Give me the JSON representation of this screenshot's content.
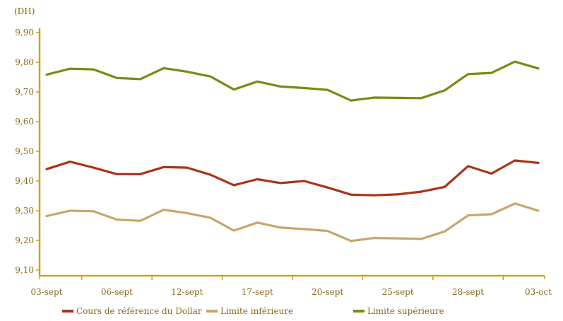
{
  "chart_data": {
    "type": "line",
    "unit_label": "(DH)",
    "ylim": [
      9.1,
      9.9
    ],
    "yticks": [
      9.1,
      9.2,
      9.3,
      9.4,
      9.5,
      9.6,
      9.7,
      9.8,
      9.9
    ],
    "ytick_labels": [
      "9,10",
      "9,20",
      "9,30",
      "9,40",
      "9,50",
      "9,60",
      "9,70",
      "9,80",
      "9,90"
    ],
    "x_tick_labels": [
      {
        "index": 0,
        "label": "03-sept"
      },
      {
        "index": 3,
        "label": "06-sept"
      },
      {
        "index": 6,
        "label": "12-sept"
      },
      {
        "index": 9,
        "label": "17-sept"
      },
      {
        "index": 12,
        "label": "20-sept"
      },
      {
        "index": 15,
        "label": "25-sept"
      },
      {
        "index": 18,
        "label": "28-sept"
      },
      {
        "index": 21,
        "label": "03-oct"
      }
    ],
    "point_count": 22,
    "grid": false,
    "legend_position": "bottom",
    "series": [
      {
        "name": "Cours de référence du Dollar",
        "color": "#a8341a",
        "values": [
          9.44,
          9.465,
          9.445,
          9.423,
          9.423,
          9.447,
          9.445,
          9.421,
          9.386,
          9.406,
          9.393,
          9.4,
          9.378,
          9.354,
          9.352,
          9.355,
          9.364,
          9.38,
          9.45,
          9.425,
          9.469,
          9.461
        ]
      },
      {
        "name": "Limite inférieure",
        "color": "#c8a66a",
        "values": [
          9.282,
          9.3,
          9.298,
          9.27,
          9.266,
          9.303,
          9.292,
          9.276,
          9.233,
          9.26,
          9.243,
          9.238,
          9.232,
          9.198,
          9.208,
          9.207,
          9.205,
          9.23,
          9.284,
          9.288,
          9.324,
          9.3
        ]
      },
      {
        "name": "Limite supérieure",
        "color": "#7a8a14",
        "values": [
          9.758,
          9.778,
          9.776,
          9.747,
          9.743,
          9.78,
          9.768,
          9.752,
          9.708,
          9.735,
          9.718,
          9.713,
          9.707,
          9.671,
          9.681,
          9.68,
          9.679,
          9.705,
          9.76,
          9.764,
          9.802,
          9.779
        ]
      }
    ]
  }
}
